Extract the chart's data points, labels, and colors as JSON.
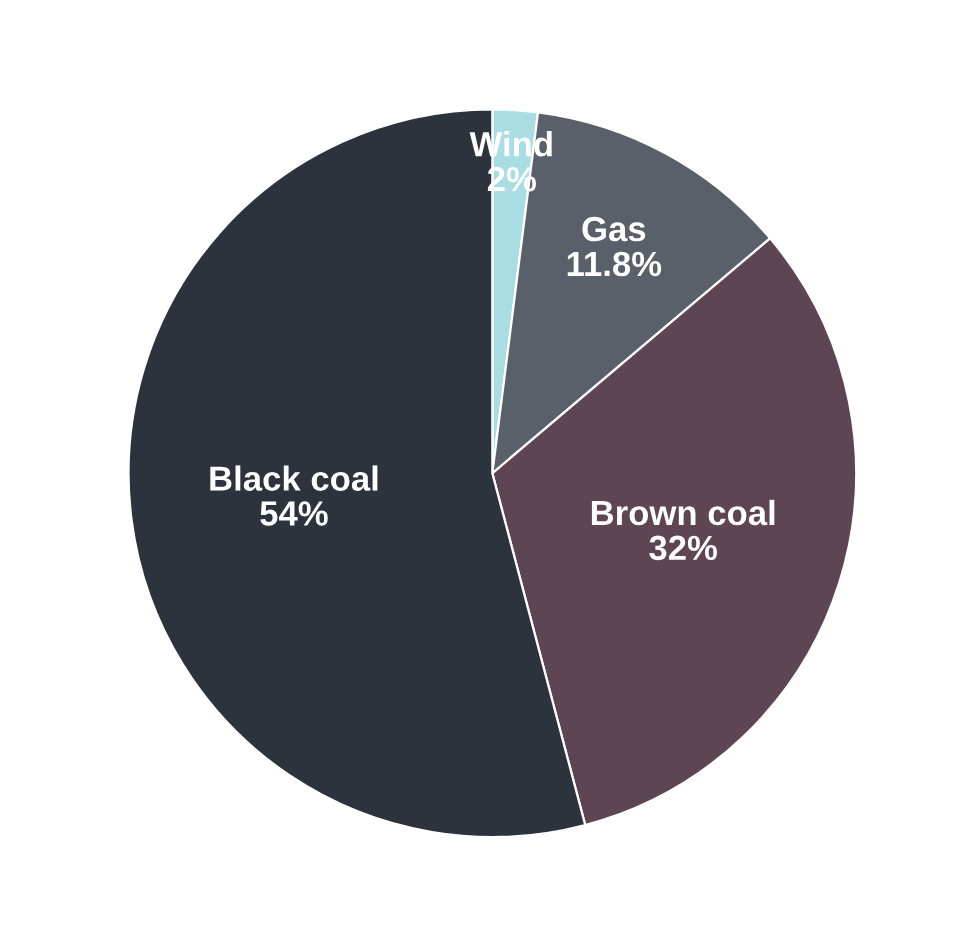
{
  "chart_data": {
    "type": "pie",
    "categories": [
      "Wind",
      "Gas",
      "Brown coal",
      "Black coal"
    ],
    "values": [
      2,
      11.8,
      32,
      54
    ],
    "value_labels": [
      "2%",
      "11.8%",
      "32%",
      "54%"
    ],
    "colors": [
      "#a8dde3",
      "#5a6069",
      "#5e4554",
      "#2d333d"
    ],
    "legend": false
  }
}
